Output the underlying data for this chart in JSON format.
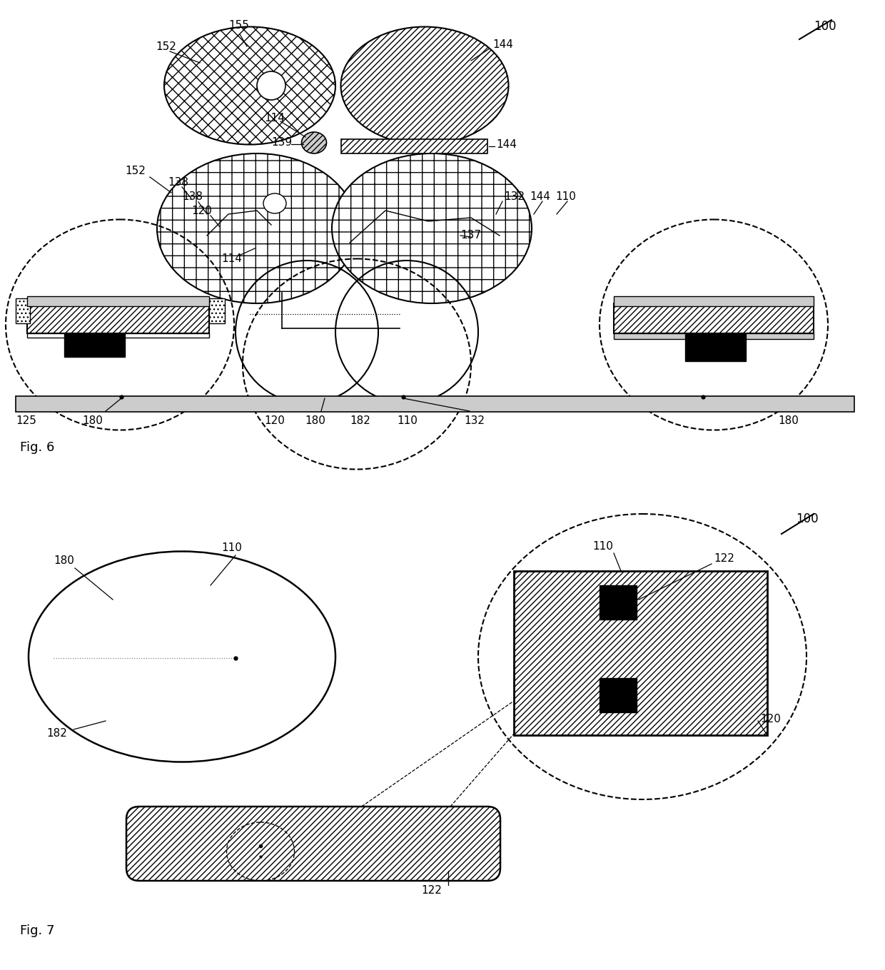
{
  "bg_color": "#ffffff",
  "black": "#000000",
  "white": "#ffffff",
  "lightgray": "#d0d0d0",
  "gray": "#888888"
}
